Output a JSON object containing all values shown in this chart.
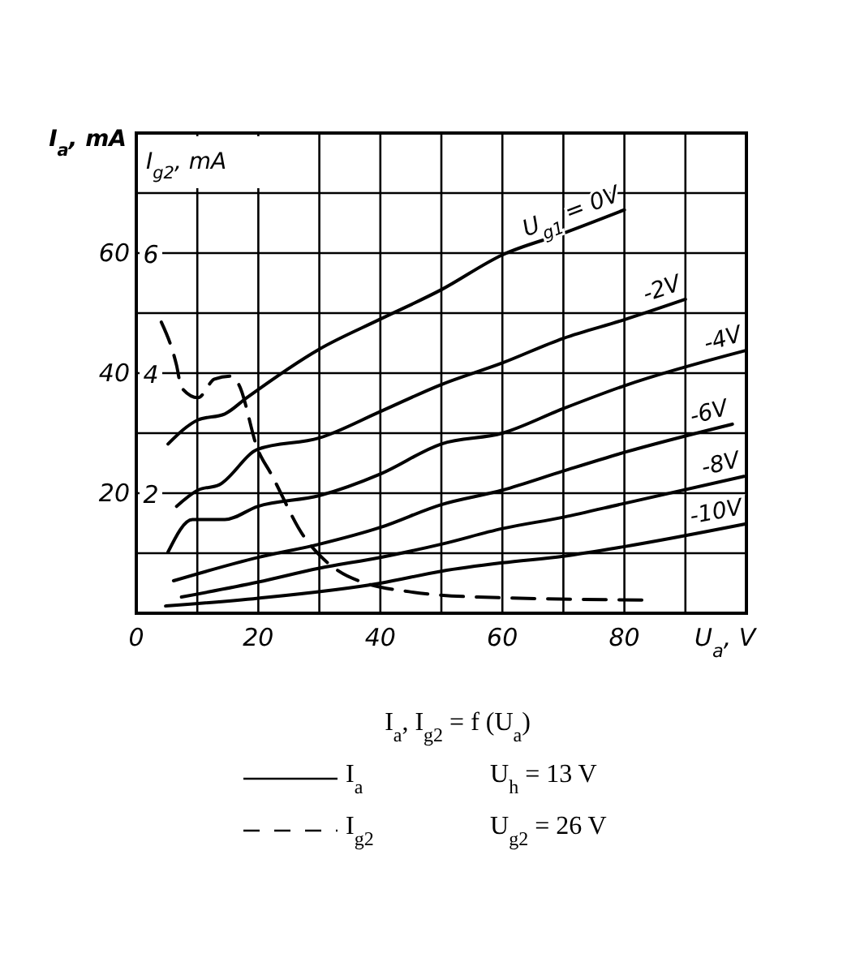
{
  "chart_data": {
    "type": "line",
    "title": "I$_{a}$,  I$_{g2}$ = f (U$_{a}$)",
    "xlabel": "U$_{a}$, V",
    "ylabel": "I$_{a}$, mA",
    "y2label": "I$_{g2}$, mA",
    "xlim": [
      0,
      100
    ],
    "xticks": [
      0,
      {
        "value": 10,
        "label": null
      },
      20,
      {
        "value": 30,
        "label": null
      },
      40,
      {
        "value": 50,
        "label": null
      },
      60,
      {
        "value": 70,
        "label": null
      },
      80,
      {
        "value": 90,
        "label": null
      }
    ],
    "ylim": [
      0,
      80
    ],
    "yticks": [
      {
        "value": 10,
        "label": null
      },
      20,
      {
        "value": 30,
        "label": null
      },
      40,
      {
        "value": 50,
        "label": null
      },
      60,
      {
        "value": 70,
        "label": null
      }
    ],
    "y2lim": [
      0,
      8
    ],
    "y2ticks": [
      2,
      4,
      6
    ],
    "grid": true,
    "marker": "none",
    "legend": "bottom",
    "annotations": [
      "I$_{a}$",
      "U$_{h}$ = 13 V",
      "U$_{g2}$ = 26 V"
    ],
    "series": [
      {
        "name": "U$_{g1}$ = 0V",
        "color": "#000000",
        "line_style": "solid",
        "x": [
          5.2,
          10.1,
          14.5,
          18.1,
          30,
          40,
          50,
          60,
          70,
          80
        ],
        "values": [
          28.2,
          32.2,
          33.2,
          35.9,
          44,
          49,
          53.9,
          59.7,
          63.3,
          67.2
        ]
      },
      {
        "name": "-2V",
        "color": "#000000",
        "line_style": "solid",
        "x": [
          6.6,
          10.1,
          13.6,
          19.9,
          30,
          40,
          50,
          60,
          70,
          80,
          90
        ],
        "values": [
          17.8,
          20.5,
          21.4,
          27.3,
          29.2,
          33.6,
          38.1,
          41.7,
          45.8,
          48.9,
          52.3
        ]
      },
      {
        "name": "-4V",
        "color": "#000000",
        "line_style": "solid",
        "x": [
          5.2,
          9.2,
          14.5,
          19.9,
          30,
          40,
          50,
          60,
          70,
          80,
          100
        ],
        "values": [
          10.2,
          15.6,
          15.6,
          17.8,
          19.6,
          23.2,
          28.2,
          30,
          34.1,
          37.9,
          43.8
        ]
      },
      {
        "name": "-6V",
        "color": "#000000",
        "line_style": "solid",
        "x": [
          6.1,
          20,
          30,
          40,
          50,
          60,
          70,
          80,
          97.7
        ],
        "values": [
          5.4,
          9.3,
          11.5,
          14.3,
          18.1,
          20.5,
          23.7,
          26.8,
          31.5
        ]
      },
      {
        "name": "-8V",
        "color": "#000000",
        "line_style": "solid",
        "x": [
          7.4,
          20,
          30,
          40,
          50,
          60,
          70,
          80,
          99.6
        ],
        "values": [
          2.7,
          5.2,
          7.5,
          9.3,
          11.5,
          14.1,
          16,
          18.3,
          22.8
        ]
      },
      {
        "name": "-10V",
        "color": "#000000",
        "line_style": "solid",
        "x": [
          4.8,
          20,
          40,
          50,
          60,
          70,
          80,
          100
        ],
        "values": [
          1.2,
          2.5,
          5,
          7,
          8.4,
          9.5,
          11.1,
          14.9
        ]
      },
      {
        "name": "I$_{g2}$",
        "color": "#000000",
        "line_style": "dashed",
        "axis": "y2",
        "x": [
          4.1,
          6.6,
          7.4,
          10.1,
          12.8,
          15.4,
          16.8,
          19.9,
          22.1,
          27.4,
          30,
          33.2,
          37.6,
          44.7,
          56,
          84
        ],
        "values": [
          4.85,
          4.13,
          3.76,
          3.59,
          3.9,
          3.95,
          3.81,
          2.73,
          2.32,
          1.29,
          0.97,
          0.7,
          0.5,
          0.36,
          0.27,
          0.22
        ]
      }
    ]
  }
}
